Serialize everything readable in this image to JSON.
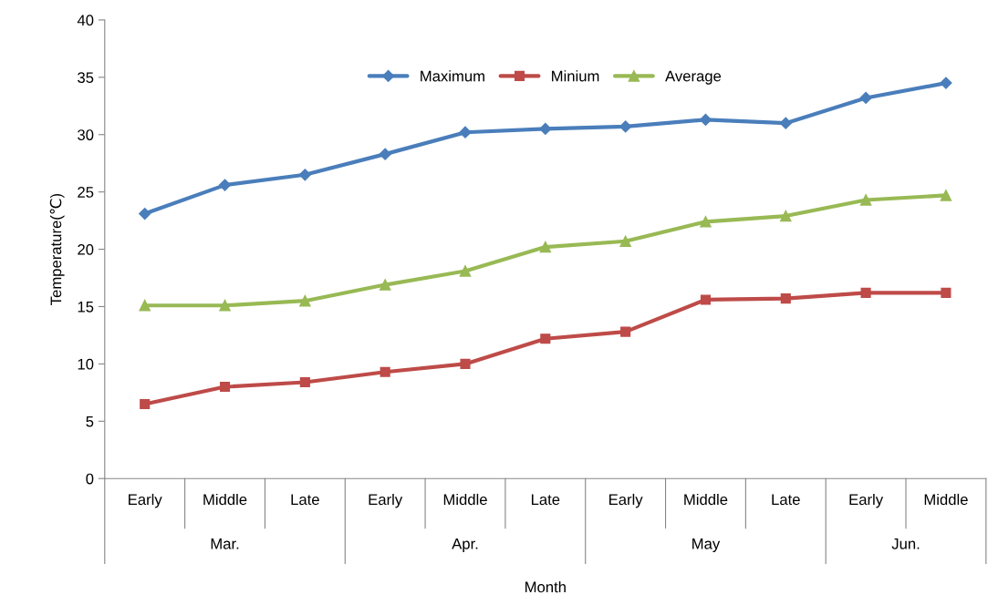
{
  "chart_data": {
    "type": "line",
    "xlabel": "Month",
    "ylabel": "Temperature(℃)",
    "categories": [
      "Early",
      "Middle",
      "Late",
      "Early",
      "Middle",
      "Late",
      "Early",
      "Middle",
      "Late",
      "Early",
      "Middle"
    ],
    "annotations": [
      "Mar.",
      "Apr.",
      "May",
      "Jun."
    ],
    "series": [
      {
        "name": "Maximum",
        "color": "#4a7ebb",
        "marker": "diamond",
        "values": [
          23.1,
          25.6,
          26.5,
          28.3,
          30.2,
          30.5,
          30.7,
          31.3,
          31.0,
          33.2,
          34.5
        ]
      },
      {
        "name": "Minium",
        "color": "#be4b48",
        "marker": "square",
        "values": [
          6.5,
          8.0,
          8.4,
          9.3,
          10.0,
          12.2,
          12.8,
          15.6,
          15.7,
          16.2,
          16.2
        ]
      },
      {
        "name": "Average",
        "color": "#98b954",
        "marker": "triangle",
        "values": [
          15.1,
          15.1,
          15.5,
          16.9,
          18.1,
          20.2,
          20.7,
          22.4,
          22.9,
          24.3,
          24.7
        ]
      }
    ],
    "ylim": [
      0,
      40
    ],
    "yticks": [
      0,
      5,
      10,
      15,
      20,
      25,
      30,
      35,
      40
    ],
    "grid": false,
    "legend": "top",
    "line_style": "solid"
  }
}
